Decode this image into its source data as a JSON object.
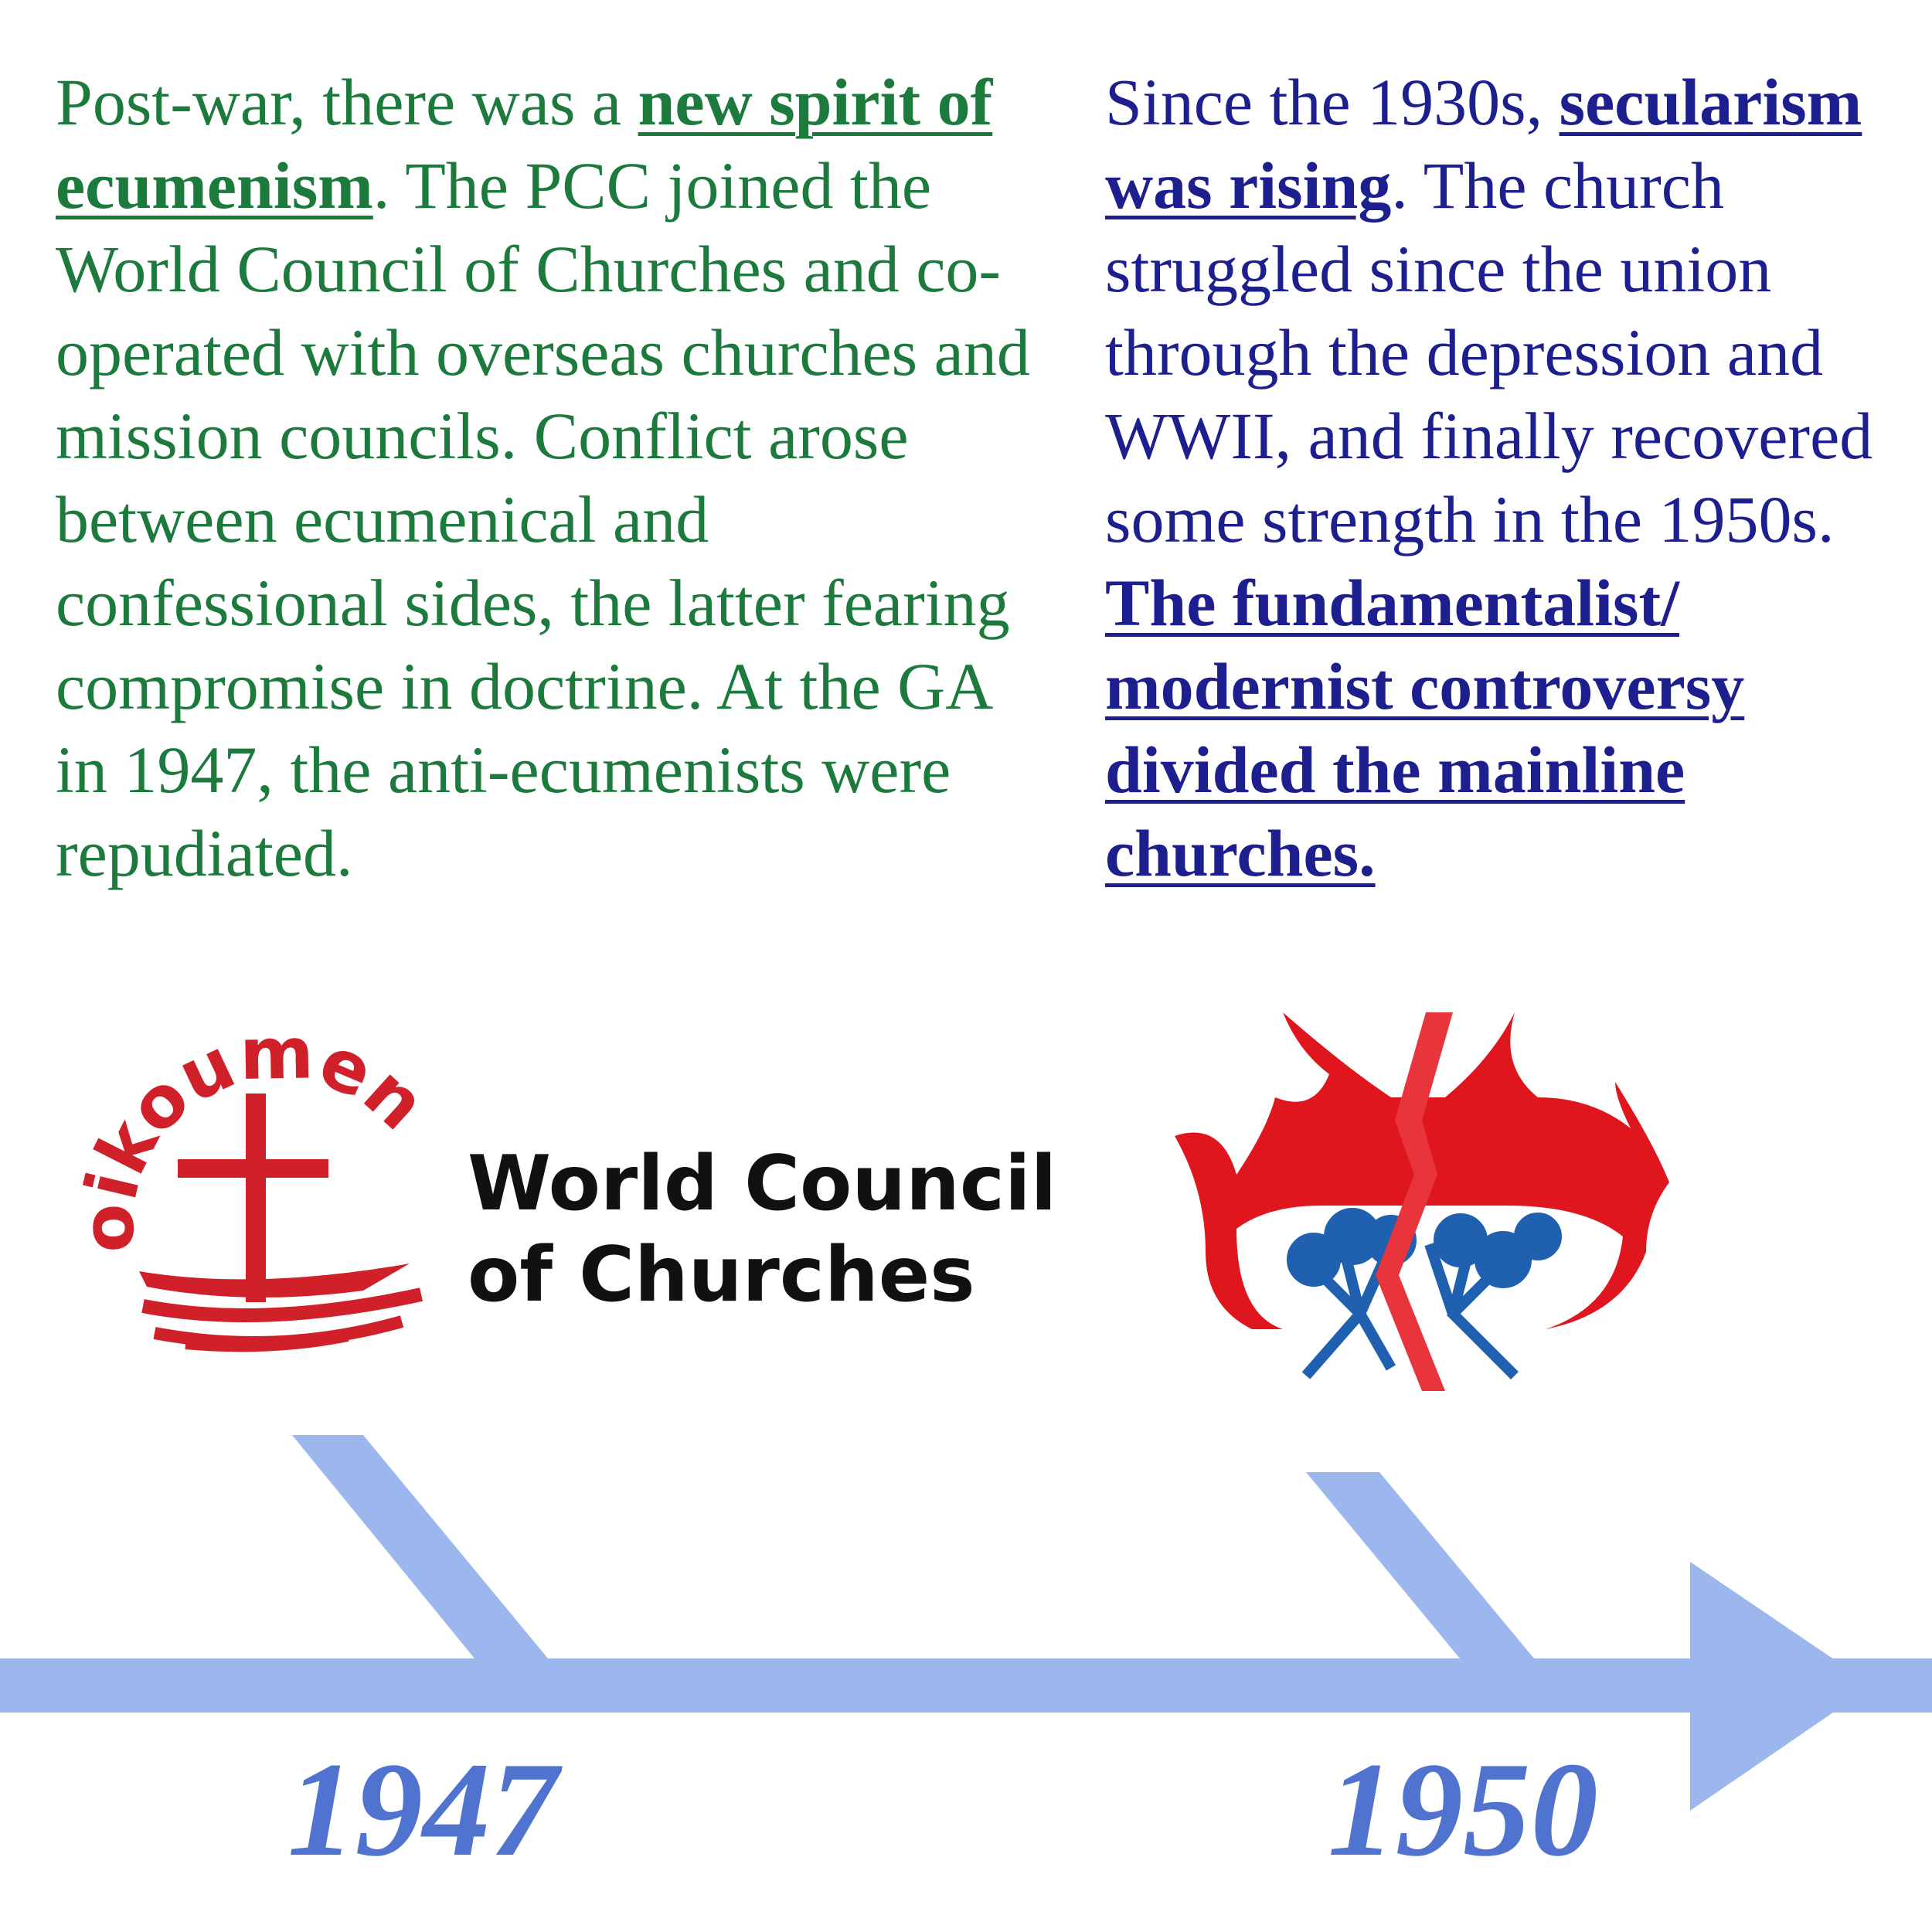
{
  "left": [
    "Post-war, there was a ",
    "new spirit of ecumenism",
    ". The PCC joined the World Council of Churches and co-operated with overseas churches and mission councils. Conflict arose between ecumenical and confessional sides, the latter fearing compromise in doctrine. At the GA in 1947, the anti-ecumenists were repudiated."
  ],
  "right": [
    "Since the 1930s, ",
    "secularism was rising",
    ". The church struggled since the union through the depression and WWII, and finally recovered some strength in the 1950s. ",
    "The fundamentalist/ modernist controversy divided the mainline churches."
  ],
  "wcc_logo": {
    "ring_text": "oikoumene",
    "name_line_1": "World Council",
    "name_line_2": "of Churches"
  },
  "timeline": {
    "years": [
      "1947",
      "1950"
    ]
  }
}
